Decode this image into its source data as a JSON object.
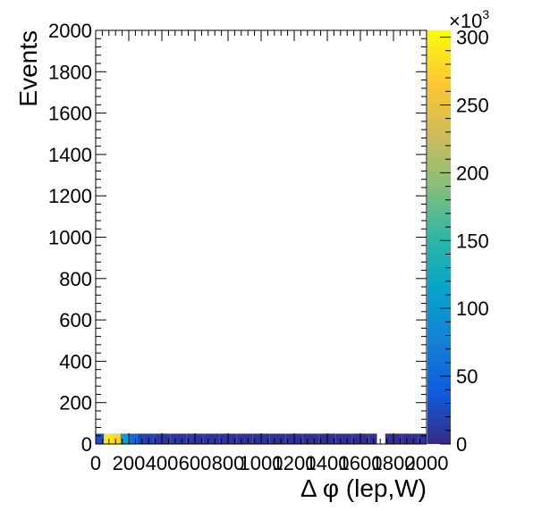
{
  "chart_data": {
    "type": "heatmap",
    "title": "",
    "xlabel": "Δ φ (lep,W)",
    "ylabel": "Events",
    "xlim": [
      0,
      2000
    ],
    "ylim": [
      0,
      2000
    ],
    "x_ticks": [
      "0",
      "200",
      "400",
      "600",
      "800",
      "1000",
      "1200",
      "1400",
      "1600",
      "1800",
      "2000"
    ],
    "y_ticks": [
      "0",
      "200",
      "400",
      "600",
      "800",
      "1000",
      "1200",
      "1400",
      "1600",
      "1800",
      "2000"
    ],
    "colorbar": {
      "range": [
        0,
        305000
      ],
      "ticks": [
        "0",
        "50",
        "100",
        "150",
        "200",
        "250",
        "300"
      ],
      "exponent_label": "×10",
      "exponent": "3"
    },
    "bin_width_x": 50,
    "bin_height_y": 50,
    "cells": [
      {
        "x": 0,
        "y": 0,
        "value": 30000
      },
      {
        "x": 50,
        "y": 0,
        "value": 290000
      },
      {
        "x": 100,
        "y": 0,
        "value": 275000
      },
      {
        "x": 150,
        "y": 0,
        "value": 110000
      },
      {
        "x": 200,
        "y": 0,
        "value": 55000
      },
      {
        "x": 250,
        "y": 0,
        "value": 20000
      },
      {
        "x": 300,
        "y": 0,
        "value": 14000
      },
      {
        "x": 350,
        "y": 0,
        "value": 12000
      },
      {
        "x": 400,
        "y": 0,
        "value": 11000
      },
      {
        "x": 450,
        "y": 0,
        "value": 10500
      },
      {
        "x": 500,
        "y": 0,
        "value": 10000
      },
      {
        "x": 550,
        "y": 0,
        "value": 9500
      },
      {
        "x": 600,
        "y": 0,
        "value": 9000
      },
      {
        "x": 650,
        "y": 0,
        "value": 8700
      },
      {
        "x": 700,
        "y": 0,
        "value": 8400
      },
      {
        "x": 750,
        "y": 0,
        "value": 8100
      },
      {
        "x": 800,
        "y": 0,
        "value": 7800
      },
      {
        "x": 850,
        "y": 0,
        "value": 7500
      },
      {
        "x": 900,
        "y": 0,
        "value": 7200
      },
      {
        "x": 950,
        "y": 0,
        "value": 7000
      },
      {
        "x": 1000,
        "y": 0,
        "value": 6800
      },
      {
        "x": 1050,
        "y": 0,
        "value": 6600
      },
      {
        "x": 1100,
        "y": 0,
        "value": 6400
      },
      {
        "x": 1150,
        "y": 0,
        "value": 6200
      },
      {
        "x": 1200,
        "y": 0,
        "value": 6000
      },
      {
        "x": 1250,
        "y": 0,
        "value": 5800
      },
      {
        "x": 1300,
        "y": 0,
        "value": 5600
      },
      {
        "x": 1350,
        "y": 0,
        "value": 5400
      },
      {
        "x": 1400,
        "y": 0,
        "value": 5200
      },
      {
        "x": 1450,
        "y": 0,
        "value": 5000
      },
      {
        "x": 1500,
        "y": 0,
        "value": 4800
      },
      {
        "x": 1550,
        "y": 0,
        "value": 4600
      },
      {
        "x": 1600,
        "y": 0,
        "value": 4400
      },
      {
        "x": 1650,
        "y": 0,
        "value": 4200
      },
      {
        "x": 1750,
        "y": 0,
        "value": 4000
      },
      {
        "x": 1800,
        "y": 0,
        "value": 3800
      },
      {
        "x": 1850,
        "y": 0,
        "value": 3600
      },
      {
        "x": 1900,
        "y": 0,
        "value": 3400
      },
      {
        "x": 1950,
        "y": 0,
        "value": 3200
      }
    ]
  }
}
